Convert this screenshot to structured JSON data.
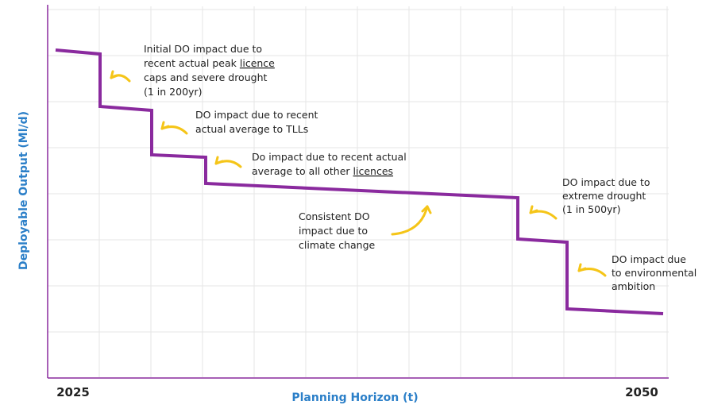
{
  "y_axis_title": "Deployable Output (Ml/d)",
  "x_axis_title": "Planning Horizon (t)",
  "x_labels": [
    "2025",
    "2050"
  ],
  "annotations": [
    {
      "lines": [
        [
          "Initial DO impact due to"
        ],
        [
          "recent actual peak ",
          "licence"
        ],
        [
          "caps and severe drought"
        ],
        [
          "(1 in 200yr)"
        ]
      ]
    },
    {
      "lines": [
        [
          "DO impact due to recent"
        ],
        [
          "actual average to TLLs"
        ]
      ]
    },
    {
      "lines": [
        [
          "Do impact due to recent actual"
        ],
        [
          "average to all other ",
          "licences"
        ]
      ]
    },
    {
      "lines": [
        [
          "Consistent DO"
        ],
        [
          "impact due to"
        ],
        [
          "climate change"
        ]
      ]
    },
    {
      "lines": [
        [
          "DO impact due to"
        ],
        [
          "extreme drought"
        ],
        [
          "(1 in 500yr)"
        ]
      ]
    },
    {
      "lines": [
        [
          "DO impact due"
        ],
        [
          "to environmental"
        ],
        [
          "ambition"
        ]
      ]
    }
  ]
}
